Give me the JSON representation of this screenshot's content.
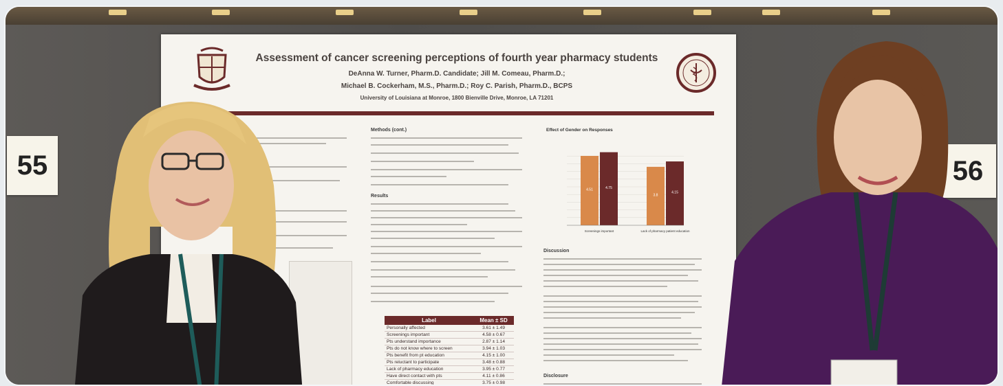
{
  "scene": {
    "booth_number_left": "55",
    "booth_number_right": "56"
  },
  "poster": {
    "title": "Assessment of cancer screening perceptions of fourth year pharmacy students",
    "authors_line1": "DeAnna W. Turner, Pharm.D. Candidate; Jill M. Comeau, Pharm.D.;",
    "authors_line2": "Michael B. Cockerham, M.S., Pharm.D.; Roy C. Parish, Pharm.D., BCPS",
    "affiliation": "University of Louisiana at Monroe, 1800 Bienville Drive, Monroe, LA 71201",
    "sections": {
      "methods_cont": "Methods (cont.)",
      "results": "Results",
      "discussion": "Discussion",
      "disclosure": "Disclosure"
    },
    "chart_title": "Effect of Gender on Responses",
    "table": {
      "header_label": "Label",
      "header_value": "Mean ± SD",
      "rows": [
        {
          "label": "Personally affected",
          "value": "3.61 ± 1.49"
        },
        {
          "label": "Screenings important",
          "value": "4.58 ± 0.67"
        },
        {
          "label": "Pts understand importance",
          "value": "2.87 ± 1.14"
        },
        {
          "label": "Pts do not know where to screen",
          "value": "3.94 ± 1.03"
        },
        {
          "label": "Pts benefit from pt education",
          "value": "4.15 ± 1.00"
        },
        {
          "label": "Pts reluctant to participate",
          "value": "3.48 ± 0.88"
        },
        {
          "label": "Lack of pharmacy education",
          "value": "3.95 ± 0.77"
        },
        {
          "label": "Have direct contact with pts",
          "value": "4.11 ± 0.86"
        },
        {
          "label": "Comfortable discussing",
          "value": "3.75 ± 0.98"
        }
      ]
    }
  },
  "chart_data": {
    "type": "bar",
    "title": "Effect of Gender on Responses",
    "categories": [
      "Screenings important",
      "Lack of pharmacy patient education"
    ],
    "series": [
      {
        "values": [
          4.51,
          3.8
        ]
      },
      {
        "values": [
          4.75,
          4.15
        ]
      }
    ],
    "ylim": [
      0,
      5
    ]
  },
  "colors": {
    "maroon": "#6b2a2a",
    "orange": "#d9894a",
    "poster_bg": "#f6f4ef",
    "wall": "#55524e"
  }
}
